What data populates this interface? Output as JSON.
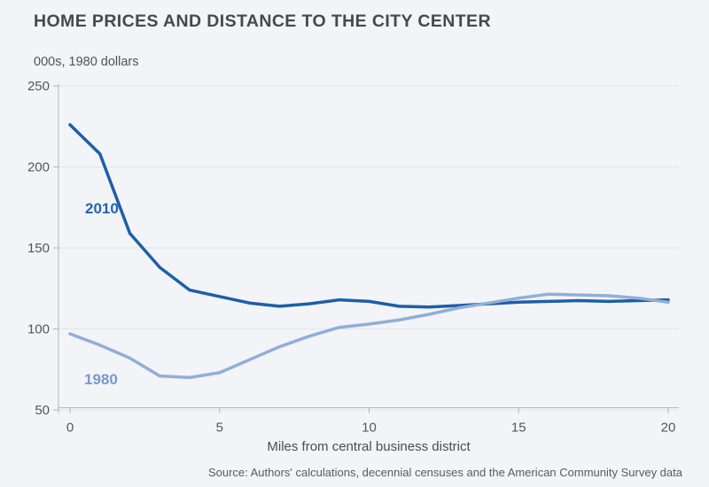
{
  "header": {
    "title": "HOME PRICES AND DISTANCE TO THE CITY CENTER",
    "subtitle": "000s, 1980 dollars"
  },
  "footer": {
    "source": "Source: Authors' calculations, decennial censuses and the American Community Survey data"
  },
  "colors": {
    "background": "#f3f4f7",
    "gridline": "#e2e4e9",
    "axis": "#b3b5ba",
    "tick_text": "#55565a",
    "title_text": "#47484a",
    "series_2010": "#1d5fa8",
    "series_2010_label": "#2565ae",
    "series_1980": "#8fafd8",
    "series_1980_label": "#7799cb"
  },
  "chart_data": {
    "type": "line",
    "title": "HOME PRICES AND DISTANCE TO THE CITY CENTER",
    "unit_label": "000s, 1980 dollars",
    "xlabel": "Miles from central business district",
    "ylabel": "",
    "xlim": [
      0,
      20
    ],
    "ylim": [
      50,
      250
    ],
    "x_ticks": [
      0,
      5,
      10,
      15,
      20
    ],
    "y_ticks": [
      50,
      100,
      150,
      200,
      250
    ],
    "grid": "horizontal-on",
    "legend_position": "inline-labels-left",
    "x": [
      0,
      1,
      2,
      3,
      4,
      5,
      6,
      7,
      8,
      9,
      10,
      11,
      12,
      13,
      14,
      15,
      16,
      17,
      18,
      19,
      20
    ],
    "series": [
      {
        "name": "2010",
        "color": "#1d5fa8",
        "label_color": "#2565ae",
        "values": [
          226,
          208,
          159,
          138,
          124,
          120,
          116,
          114,
          115.5,
          118,
          117,
          114,
          113.5,
          114.5,
          115.5,
          116.5,
          117,
          117.5,
          117,
          117.5,
          118
        ]
      },
      {
        "name": "1980",
        "color": "#8fafd8",
        "label_color": "#7799cb",
        "values": [
          97,
          90,
          82,
          71,
          70,
          73,
          81,
          89,
          95.5,
          101,
          103,
          105.5,
          109,
          113,
          116,
          119,
          121.5,
          121,
          120.5,
          119,
          116.5
        ]
      }
    ],
    "source": "Source: Authors' calculations, decennial censuses and the American Community Survey data"
  }
}
